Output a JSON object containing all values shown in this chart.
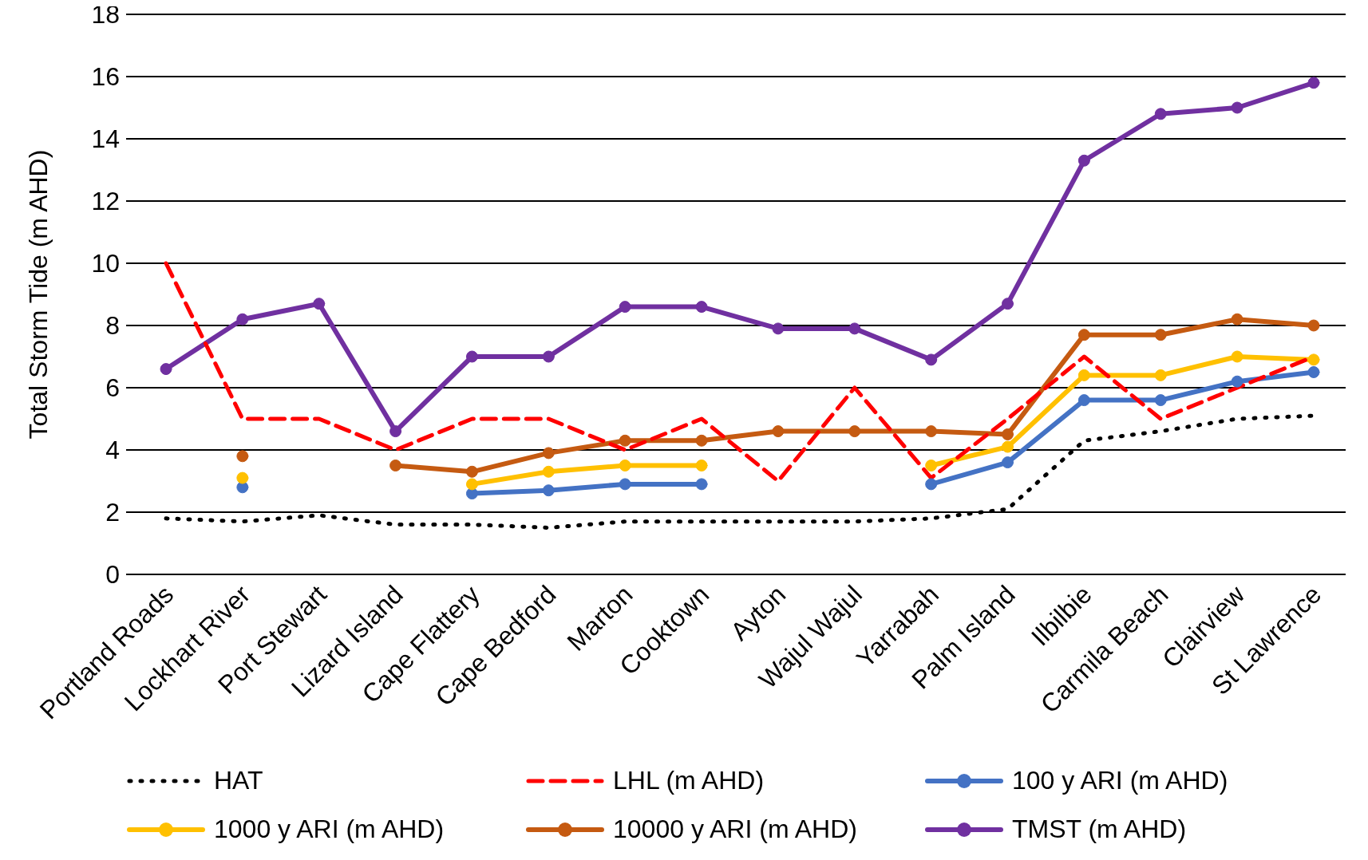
{
  "chart_data": {
    "type": "line",
    "ylabel": "Total Storm Tide (m AHD)",
    "categories": [
      "Portland Roads",
      "Lockhart River",
      "Port Stewart",
      "Lizard Island",
      "Cape Flattery",
      "Cape Bedford",
      "Marton",
      "Cooktown",
      "Ayton",
      "Wajul Wajul",
      "Yarrabah",
      "Palm Island",
      "Ilbilbie",
      "Carmila Beach",
      "Clairview",
      "St Lawrence"
    ],
    "series": [
      {
        "name": "HAT",
        "color": "#000000",
        "line_style": "dotted",
        "marker": "none",
        "values": [
          1.8,
          1.7,
          1.9,
          1.6,
          1.6,
          1.5,
          1.7,
          1.7,
          1.7,
          1.7,
          1.8,
          2.1,
          4.3,
          4.6,
          5.0,
          5.1
        ]
      },
      {
        "name": "LHL (m AHD)",
        "color": "#ff0000",
        "line_style": "dashed",
        "marker": "none",
        "values": [
          10,
          5,
          5,
          4,
          5,
          5,
          4,
          5,
          3,
          6,
          3.1,
          5,
          7,
          5,
          6,
          7
        ]
      },
      {
        "name": "100 y ARI (m AHD)",
        "color": "#4472c4",
        "line_style": "solid",
        "marker": "circle",
        "values": [
          null,
          2.8,
          null,
          null,
          2.6,
          2.7,
          2.9,
          2.9,
          null,
          null,
          2.9,
          3.6,
          5.6,
          5.6,
          6.2,
          6.5
        ]
      },
      {
        "name": "1000 y ARI (m AHD)",
        "color": "#ffc000",
        "line_style": "solid",
        "marker": "circle",
        "values": [
          null,
          3.1,
          null,
          null,
          2.9,
          3.3,
          3.5,
          3.5,
          null,
          null,
          3.5,
          4.1,
          6.4,
          6.4,
          7.0,
          6.9
        ]
      },
      {
        "name": "10000 y ARI (m AHD)",
        "color": "#c55a11",
        "line_style": "solid",
        "marker": "circle",
        "values": [
          null,
          3.8,
          null,
          3.5,
          3.3,
          3.9,
          4.3,
          4.3,
          4.6,
          4.6,
          4.6,
          4.5,
          7.7,
          7.7,
          8.2,
          8.0
        ]
      },
      {
        "name": "TMST (m AHD)",
        "color": "#7030a0",
        "line_style": "solid",
        "marker": "circle",
        "values": [
          6.6,
          8.2,
          8.7,
          4.6,
          7.0,
          7.0,
          8.6,
          8.6,
          7.9,
          7.9,
          6.9,
          8.7,
          13.3,
          14.8,
          15.0,
          15.8
        ]
      }
    ],
    "ylim": [
      0,
      18
    ],
    "yticks": [
      0,
      2,
      4,
      6,
      8,
      10,
      12,
      14,
      16,
      18
    ],
    "grid": "y",
    "legend": "bottom"
  }
}
